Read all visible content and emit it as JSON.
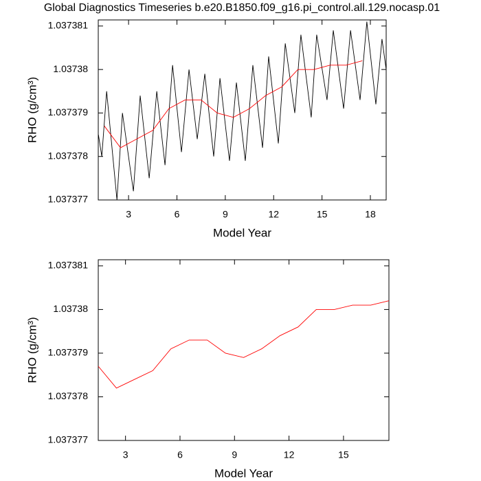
{
  "chart_data": [
    {
      "type": "line",
      "title": "Global Diagnostics Timeseries b.e20.B1850.f09_g16.pi_control.all.129.nocasp.01",
      "xlabel": "Model Year",
      "ylabel": "RHO (g/cm³)",
      "xlim": [
        1.12,
        18.98
      ],
      "ylim": [
        1.037377,
        1.03738114
      ],
      "xticks": [
        3,
        6,
        9,
        12,
        15,
        18
      ],
      "yticks": [
        1.037377,
        1.037378,
        1.037379,
        1.03738,
        1.037381
      ],
      "series": [
        {
          "color": "#000000",
          "x": [
            1.13,
            1.34,
            1.64,
            2.28,
            2.62,
            3.3,
            3.72,
            4.28,
            4.75,
            5.26,
            5.73,
            6.28,
            6.75,
            7.26,
            7.73,
            8.28,
            8.67,
            9.26,
            9.69,
            10.24,
            10.71,
            11.31,
            11.69,
            12.29,
            12.72,
            13.31,
            13.69,
            14.33,
            14.67,
            15.31,
            15.7,
            16.34,
            16.77,
            17.36,
            17.78,
            18.34,
            18.72,
            18.98
          ],
          "values": [
            1.0373785,
            1.037378,
            1.0373795,
            1.037377,
            1.037379,
            1.0373772,
            1.0373794,
            1.0373775,
            1.0373795,
            1.0373778,
            1.0373801,
            1.0373781,
            1.03738,
            1.0373784,
            1.0373799,
            1.037378,
            1.0373798,
            1.0373779,
            1.0373797,
            1.0373779,
            1.0373801,
            1.0373782,
            1.0373803,
            1.0373783,
            1.0373806,
            1.037379,
            1.0373808,
            1.0373789,
            1.0373808,
            1.0373793,
            1.0373809,
            1.0373791,
            1.0373809,
            1.0373793,
            1.0373811,
            1.0373792,
            1.0373807,
            1.03738
          ]
        },
        {
          "color": "#ff0000",
          "x": [
            1.5,
            2.5,
            3.5,
            4.5,
            5.5,
            6.5,
            7.5,
            8.5,
            9.5,
            10.5,
            11.5,
            12.5,
            13.5,
            14.5,
            15.5,
            16.5,
            17.5
          ],
          "values": [
            1.0373787,
            1.0373782,
            1.0373784,
            1.0373786,
            1.0373791,
            1.0373793,
            1.0373793,
            1.037379,
            1.0373789,
            1.0373791,
            1.0373794,
            1.0373796,
            1.03738,
            1.03738,
            1.0373801,
            1.0373801,
            1.0373802
          ]
        }
      ]
    },
    {
      "type": "line",
      "xlabel": "Model Year",
      "ylabel": "RHO (g/cm³)",
      "xlim": [
        1.5,
        17.5
      ],
      "ylim": [
        1.037377,
        1.03738114
      ],
      "xticks": [
        3,
        6,
        9,
        12,
        15
      ],
      "yticks": [
        1.037377,
        1.037378,
        1.037379,
        1.03738,
        1.037381
      ],
      "series": [
        {
          "color": "#ff0000",
          "x": [
            1.5,
            2.5,
            3.5,
            4.5,
            5.5,
            6.5,
            7.5,
            8.5,
            9.5,
            10.5,
            11.5,
            12.5,
            13.5,
            14.5,
            15.5,
            16.5,
            17.5
          ],
          "values": [
            1.0373787,
            1.0373782,
            1.0373784,
            1.0373786,
            1.0373791,
            1.0373793,
            1.0373793,
            1.037379,
            1.0373789,
            1.0373791,
            1.0373794,
            1.0373796,
            1.03738,
            1.03738,
            1.0373801,
            1.0373801,
            1.0373802
          ]
        }
      ]
    }
  ]
}
